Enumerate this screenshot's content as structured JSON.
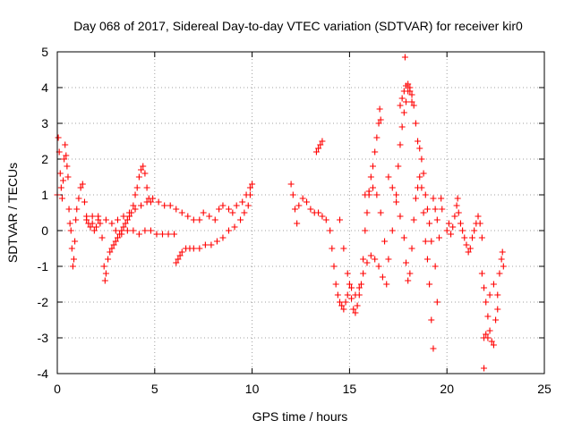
{
  "chart_data": {
    "type": "scatter",
    "title": "Day 068 of 2017, Sidereal Day-to-day VTEC variation (SDTVAR) for receiver kir0",
    "xlabel": "GPS time / hours",
    "ylabel": "SDTVAR / TECUs",
    "xlim": [
      0,
      25
    ],
    "ylim": [
      -4,
      5
    ],
    "xticks": [
      "0",
      "5",
      "10",
      "15",
      "20",
      "25"
    ],
    "yticks": [
      "-4",
      "-3",
      "-2",
      "-1",
      "0",
      "1",
      "2",
      "3",
      "4",
      "5"
    ],
    "grid": true,
    "legend": "none",
    "marker": "+",
    "color": "#ff0000",
    "points": [
      [
        0.0,
        1.0
      ],
      [
        0.05,
        2.6
      ],
      [
        0.1,
        2.2
      ],
      [
        0.15,
        1.6
      ],
      [
        0.2,
        1.2
      ],
      [
        0.25,
        0.9
      ],
      [
        0.3,
        1.4
      ],
      [
        0.35,
        2.0
      ],
      [
        0.4,
        2.4
      ],
      [
        0.45,
        2.1
      ],
      [
        0.5,
        1.8
      ],
      [
        0.55,
        1.5
      ],
      [
        0.6,
        0.6
      ],
      [
        0.65,
        0.2
      ],
      [
        0.7,
        0.0
      ],
      [
        0.75,
        -0.5
      ],
      [
        0.8,
        -1.0
      ],
      [
        0.85,
        -0.8
      ],
      [
        0.9,
        -0.3
      ],
      [
        0.95,
        0.3
      ],
      [
        1.0,
        0.6
      ],
      [
        1.1,
        0.9
      ],
      [
        1.2,
        1.2
      ],
      [
        1.3,
        1.3
      ],
      [
        1.4,
        0.8
      ],
      [
        1.5,
        0.4
      ],
      [
        1.6,
        0.2
      ],
      [
        1.7,
        0.1
      ],
      [
        1.8,
        0.2
      ],
      [
        1.9,
        0.0
      ],
      [
        2.0,
        0.1
      ],
      [
        2.1,
        0.3
      ],
      [
        2.2,
        0.2
      ],
      [
        2.3,
        -0.2
      ],
      [
        2.4,
        -1.0
      ],
      [
        2.45,
        -1.4
      ],
      [
        2.5,
        -1.2
      ],
      [
        2.6,
        -0.8
      ],
      [
        2.7,
        -0.6
      ],
      [
        2.8,
        -0.5
      ],
      [
        2.9,
        -0.4
      ],
      [
        3.0,
        -0.3
      ],
      [
        3.1,
        -0.2
      ],
      [
        3.2,
        -0.1
      ],
      [
        3.3,
        0.0
      ],
      [
        3.4,
        0.1
      ],
      [
        3.5,
        0.2
      ],
      [
        3.6,
        0.3
      ],
      [
        3.7,
        0.4
      ],
      [
        3.8,
        0.5
      ],
      [
        3.9,
        0.7
      ],
      [
        4.0,
        1.0
      ],
      [
        4.1,
        1.2
      ],
      [
        4.2,
        1.5
      ],
      [
        4.3,
        1.7
      ],
      [
        4.4,
        1.8
      ],
      [
        4.5,
        1.6
      ],
      [
        4.6,
        1.2
      ],
      [
        4.7,
        0.9
      ],
      [
        4.8,
        0.8
      ],
      [
        1.5,
        0.3
      ],
      [
        1.8,
        0.4
      ],
      [
        2.1,
        0.4
      ],
      [
        2.5,
        0.3
      ],
      [
        2.8,
        0.2
      ],
      [
        3.1,
        0.3
      ],
      [
        3.4,
        0.4
      ],
      [
        3.7,
        0.5
      ],
      [
        4.0,
        0.6
      ],
      [
        4.3,
        0.7
      ],
      [
        4.6,
        0.8
      ],
      [
        4.9,
        0.9
      ],
      [
        5.2,
        0.8
      ],
      [
        5.5,
        0.7
      ],
      [
        5.8,
        0.7
      ],
      [
        6.1,
        0.6
      ],
      [
        6.4,
        0.5
      ],
      [
        6.7,
        0.4
      ],
      [
        7.0,
        0.3
      ],
      [
        7.3,
        0.3
      ],
      [
        3.0,
        0.0
      ],
      [
        3.3,
        -0.1
      ],
      [
        3.6,
        0.0
      ],
      [
        3.9,
        0.0
      ],
      [
        4.2,
        -0.1
      ],
      [
        4.5,
        0.0
      ],
      [
        4.8,
        0.0
      ],
      [
        5.1,
        -0.1
      ],
      [
        5.4,
        -0.1
      ],
      [
        5.7,
        -0.1
      ],
      [
        6.0,
        -0.1
      ],
      [
        6.1,
        -0.9
      ],
      [
        6.2,
        -0.8
      ],
      [
        6.3,
        -0.7
      ],
      [
        6.4,
        -0.6
      ],
      [
        6.6,
        -0.5
      ],
      [
        6.8,
        -0.5
      ],
      [
        7.0,
        -0.5
      ],
      [
        7.3,
        -0.5
      ],
      [
        7.6,
        -0.4
      ],
      [
        7.9,
        -0.4
      ],
      [
        8.2,
        -0.3
      ],
      [
        8.5,
        -0.2
      ],
      [
        8.8,
        0.0
      ],
      [
        9.1,
        0.1
      ],
      [
        9.4,
        0.3
      ],
      [
        9.6,
        0.5
      ],
      [
        9.8,
        0.7
      ],
      [
        9.9,
        1.0
      ],
      [
        10.0,
        1.3
      ],
      [
        7.5,
        0.5
      ],
      [
        7.8,
        0.4
      ],
      [
        8.1,
        0.3
      ],
      [
        8.3,
        0.6
      ],
      [
        8.5,
        0.7
      ],
      [
        8.8,
        0.6
      ],
      [
        9.0,
        0.5
      ],
      [
        9.2,
        0.7
      ],
      [
        9.5,
        0.8
      ],
      [
        9.7,
        1.0
      ],
      [
        9.9,
        1.2
      ],
      [
        12.0,
        1.3
      ],
      [
        12.1,
        1.0
      ],
      [
        12.2,
        0.6
      ],
      [
        12.3,
        0.2
      ],
      [
        12.4,
        0.7
      ],
      [
        12.6,
        0.9
      ],
      [
        12.8,
        0.8
      ],
      [
        13.0,
        0.6
      ],
      [
        13.2,
        0.5
      ],
      [
        13.4,
        0.5
      ],
      [
        13.6,
        0.4
      ],
      [
        13.8,
        0.3
      ],
      [
        14.0,
        0.0
      ],
      [
        14.1,
        -0.5
      ],
      [
        14.2,
        -1.0
      ],
      [
        14.3,
        -1.5
      ],
      [
        14.4,
        -1.8
      ],
      [
        14.5,
        -2.0
      ],
      [
        14.6,
        -2.1
      ],
      [
        14.7,
        -2.2
      ],
      [
        13.3,
        2.2
      ],
      [
        13.4,
        2.3
      ],
      [
        13.5,
        2.4
      ],
      [
        13.6,
        2.5
      ],
      [
        14.8,
        -2.0
      ],
      [
        14.9,
        -1.8
      ],
      [
        15.0,
        -1.5
      ],
      [
        15.1,
        -1.9
      ],
      [
        15.2,
        -2.2
      ],
      [
        15.3,
        -2.3
      ],
      [
        15.4,
        -2.1
      ],
      [
        15.5,
        -1.8
      ],
      [
        15.6,
        -1.5
      ],
      [
        15.7,
        -0.8
      ],
      [
        15.8,
        0.0
      ],
      [
        15.9,
        0.5
      ],
      [
        16.0,
        1.0
      ],
      [
        16.1,
        1.5
      ],
      [
        16.2,
        1.8
      ],
      [
        16.3,
        2.2
      ],
      [
        16.4,
        2.6
      ],
      [
        16.5,
        3.0
      ],
      [
        16.55,
        3.4
      ],
      [
        16.6,
        3.1
      ],
      [
        14.5,
        0.3
      ],
      [
        14.7,
        -0.5
      ],
      [
        14.9,
        -1.2
      ],
      [
        15.1,
        -1.6
      ],
      [
        15.3,
        -1.8
      ],
      [
        15.5,
        -1.6
      ],
      [
        15.7,
        -1.2
      ],
      [
        15.9,
        -0.9
      ],
      [
        16.1,
        -0.7
      ],
      [
        16.3,
        -0.8
      ],
      [
        16.5,
        -1.0
      ],
      [
        16.7,
        -1.3
      ],
      [
        16.9,
        -1.5
      ],
      [
        15.8,
        1.0
      ],
      [
        16.0,
        1.1
      ],
      [
        16.2,
        1.2
      ],
      [
        16.4,
        1.0
      ],
      [
        16.6,
        0.5
      ],
      [
        16.8,
        -0.3
      ],
      [
        17.0,
        -0.8
      ],
      [
        17.2,
        0.0
      ],
      [
        17.4,
        1.0
      ],
      [
        17.5,
        1.8
      ],
      [
        17.6,
        2.4
      ],
      [
        17.7,
        2.9
      ],
      [
        17.8,
        3.3
      ],
      [
        17.9,
        3.6
      ],
      [
        18.0,
        3.9
      ],
      [
        18.1,
        4.0
      ],
      [
        18.2,
        3.8
      ],
      [
        18.3,
        3.5
      ],
      [
        18.4,
        3.0
      ],
      [
        18.5,
        2.5
      ],
      [
        17.6,
        3.5
      ],
      [
        17.7,
        3.7
      ],
      [
        17.8,
        3.9
      ],
      [
        17.9,
        4.05
      ],
      [
        18.0,
        4.1
      ],
      [
        18.1,
        3.9
      ],
      [
        18.2,
        3.6
      ],
      [
        17.85,
        4.85
      ],
      [
        17.0,
        1.5
      ],
      [
        17.2,
        1.2
      ],
      [
        17.4,
        0.8
      ],
      [
        17.6,
        0.4
      ],
      [
        17.8,
        -0.2
      ],
      [
        17.9,
        -0.9
      ],
      [
        18.0,
        -1.4
      ],
      [
        18.1,
        -1.2
      ],
      [
        18.2,
        -0.5
      ],
      [
        18.3,
        0.3
      ],
      [
        18.4,
        0.9
      ],
      [
        18.5,
        1.2
      ],
      [
        18.6,
        1.5
      ],
      [
        18.7,
        1.2
      ],
      [
        18.8,
        0.5
      ],
      [
        18.9,
        -0.3
      ],
      [
        19.0,
        -0.8
      ],
      [
        19.1,
        -1.5
      ],
      [
        19.2,
        -2.5
      ],
      [
        19.3,
        -3.3
      ],
      [
        18.6,
        2.3
      ],
      [
        18.7,
        2.0
      ],
      [
        18.8,
        1.6
      ],
      [
        18.9,
        1.0
      ],
      [
        19.0,
        0.6
      ],
      [
        19.1,
        0.2
      ],
      [
        19.2,
        -0.3
      ],
      [
        19.4,
        -1.0
      ],
      [
        19.5,
        -2.0
      ],
      [
        19.3,
        0.9
      ],
      [
        19.4,
        0.6
      ],
      [
        19.5,
        0.3
      ],
      [
        19.6,
        -0.2
      ],
      [
        19.7,
        0.9
      ],
      [
        19.75,
        0.6
      ],
      [
        20.0,
        0.0
      ],
      [
        20.1,
        0.2
      ],
      [
        20.2,
        -0.1
      ],
      [
        20.3,
        0.1
      ],
      [
        20.4,
        0.4
      ],
      [
        20.5,
        0.7
      ],
      [
        20.55,
        0.9
      ],
      [
        20.6,
        0.5
      ],
      [
        20.7,
        0.2
      ],
      [
        20.8,
        0.0
      ],
      [
        20.9,
        -0.2
      ],
      [
        21.0,
        -0.4
      ],
      [
        21.1,
        -0.6
      ],
      [
        21.2,
        -0.5
      ],
      [
        21.3,
        -0.2
      ],
      [
        21.4,
        0.0
      ],
      [
        21.5,
        0.2
      ],
      [
        21.6,
        0.4
      ],
      [
        21.7,
        0.2
      ],
      [
        21.8,
        -0.2
      ],
      [
        21.8,
        -1.2
      ],
      [
        21.9,
        -1.6
      ],
      [
        22.0,
        -2.0
      ],
      [
        22.1,
        -2.4
      ],
      [
        22.2,
        -2.8
      ],
      [
        22.3,
        -3.1
      ],
      [
        22.4,
        -3.2
      ],
      [
        22.5,
        -2.5
      ],
      [
        22.6,
        -1.8
      ],
      [
        22.7,
        -1.2
      ],
      [
        22.8,
        -0.8
      ],
      [
        22.85,
        -0.6
      ],
      [
        22.9,
        -1.0
      ],
      [
        22.4,
        -1.5
      ],
      [
        22.6,
        -2.2
      ],
      [
        22.2,
        -1.8
      ],
      [
        21.9,
        -3.85
      ],
      [
        22.0,
        -2.9
      ],
      [
        22.1,
        -3.0
      ],
      [
        21.9,
        -3.0
      ]
    ]
  }
}
